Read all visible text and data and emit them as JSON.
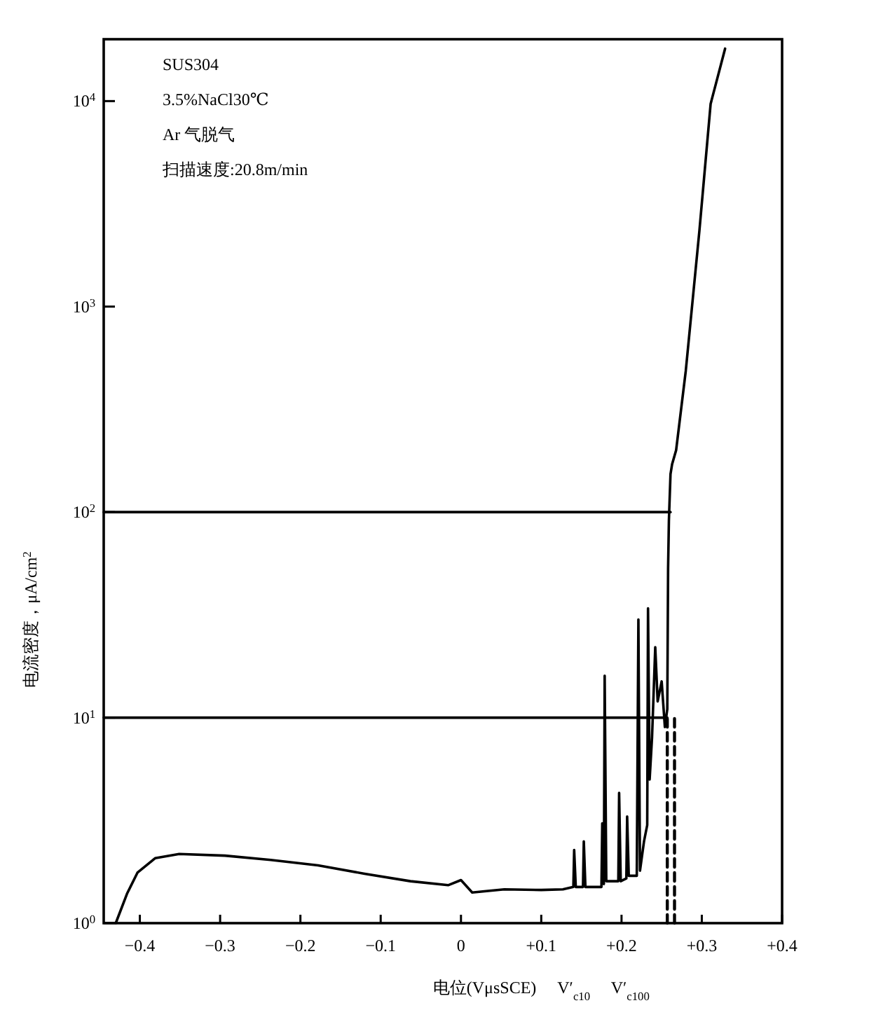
{
  "chart_data": {
    "type": "line",
    "xlabel": "电位(VμsSCE)　 V′$_{c10}$　 V′$_{c100}$",
    "ylabel": "电流密度，μA/cm$^{2}$",
    "log": "y",
    "xlim": [
      -0.445,
      0.4
    ],
    "ylim": [
      1,
      20000
    ],
    "xticks": [
      {
        "value": -0.4,
        "label": "−0.4"
      },
      {
        "value": -0.3,
        "label": "−0.3"
      },
      {
        "value": -0.2,
        "label": "−0.2"
      },
      {
        "value": -0.1,
        "label": "−0.1"
      },
      0,
      {
        "value": 0.1,
        "label": "+0.1"
      },
      {
        "value": 0.2,
        "label": "+0.2"
      },
      {
        "value": 0.3,
        "label": "+0.3"
      },
      {
        "value": 0.4,
        "label": "+0.4"
      }
    ],
    "yticks": [
      {
        "value": 1,
        "label": "10$^{0}$"
      },
      {
        "value": 10,
        "label": "10$^{1}$"
      },
      {
        "value": 100,
        "label": "10$^{2}$"
      },
      {
        "value": 1000,
        "label": "10$^{3}$"
      },
      {
        "value": 10000,
        "label": "10$^{4}$"
      }
    ],
    "grid": false,
    "marker": "none",
    "series": [
      {
        "color": "#000000",
        "line_style": "solid",
        "x": [
          -0.43,
          -0.416,
          -0.403,
          -0.381,
          -0.351,
          -0.294,
          -0.237,
          -0.178,
          -0.12,
          -0.063,
          -0.016,
          0.0,
          0.014,
          0.054,
          0.1,
          0.127,
          0.14,
          0.141,
          0.143,
          0.152,
          0.153,
          0.155,
          0.175,
          0.176,
          0.178,
          0.179,
          0.181,
          0.196,
          0.197,
          0.199,
          0.206,
          0.207,
          0.209,
          0.219,
          0.221,
          0.223,
          0.228,
          0.232,
          0.233,
          0.235,
          0.238,
          0.242,
          0.245,
          0.25,
          0.254,
          0.257,
          0.258,
          0.259,
          0.261,
          0.263,
          0.268,
          0.28,
          0.297,
          0.311,
          0.329
        ],
        "values": [
          1.0,
          1.39,
          1.76,
          2.07,
          2.17,
          2.13,
          2.03,
          1.91,
          1.74,
          1.6,
          1.53,
          1.62,
          1.41,
          1.46,
          1.45,
          1.46,
          1.5,
          2.27,
          1.5,
          1.5,
          2.5,
          1.5,
          1.5,
          3.06,
          1.55,
          16,
          1.6,
          1.6,
          4.3,
          1.6,
          1.65,
          3.3,
          1.7,
          1.7,
          30,
          1.8,
          2.5,
          3,
          34,
          5,
          8,
          22,
          12,
          15,
          9,
          11,
          53,
          91,
          153,
          171,
          200,
          486,
          2340,
          9700,
          18000
        ]
      },
      {
        "color": "#000000",
        "line_style": "solid",
        "x": [
          -0.445,
          0.257
        ],
        "values": [
          10,
          10
        ]
      },
      {
        "color": "#000000",
        "line_style": "solid",
        "x": [
          -0.445,
          0.261
        ],
        "values": [
          100,
          100
        ]
      },
      {
        "color": "#000000",
        "line_style": "dashed",
        "x": [
          0.257,
          0.257
        ],
        "values": [
          1,
          10
        ]
      },
      {
        "color": "#000000",
        "line_style": "dashed",
        "x": [
          0.266,
          0.266
        ],
        "values": [
          1,
          10
        ]
      }
    ],
    "annotations": [
      "SUS304",
      "3.5%NaCl30℃",
      "Ar 气脱气",
      "扫描速度:20.8m/min"
    ]
  }
}
